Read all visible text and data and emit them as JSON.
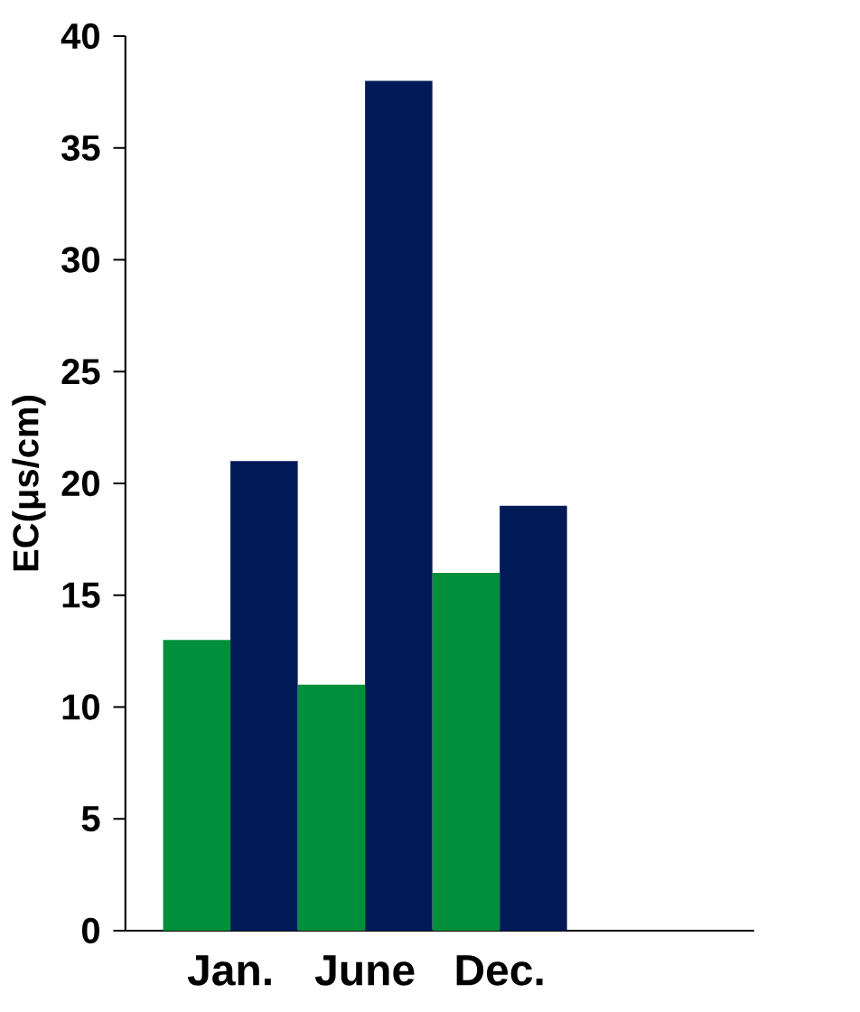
{
  "chart_data": {
    "type": "bar",
    "ylabel": "EC(μs/cm)",
    "categories": [
      "Jan.",
      "June",
      "Dec."
    ],
    "series": [
      {
        "color": "#008f3a",
        "values": [
          13,
          11,
          16
        ]
      },
      {
        "color": "#001a57",
        "values": [
          21,
          38,
          19
        ]
      }
    ],
    "ylim": [
      0,
      40
    ],
    "yticks": [
      0,
      5,
      10,
      15,
      20,
      25,
      30,
      35,
      40
    ],
    "grid": false
  }
}
